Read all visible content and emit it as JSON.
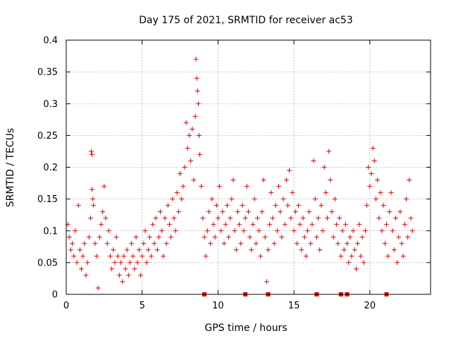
{
  "chart_data": {
    "type": "scatter",
    "title": "Day 175 of 2021, SRMTID for receiver ac53",
    "xlabel": "GPS time / hours",
    "ylabel": "SRMTID / TECUs",
    "xlim": [
      0,
      24
    ],
    "ylim": [
      0,
      0.4
    ],
    "xticks": [
      0,
      5,
      10,
      15,
      20
    ],
    "yticks": [
      0,
      0.05,
      0.1,
      0.15,
      0.2,
      0.25,
      0.3,
      0.35,
      0.4
    ],
    "xtick_labels": [
      "0",
      "5",
      "10",
      "15",
      "20"
    ],
    "ytick_labels": [
      "0",
      "0.05",
      "0.1",
      "0.15",
      "0.2",
      "0.25",
      "0.3",
      "0.35",
      "0.4"
    ],
    "grid": true,
    "marker": "+",
    "color": "#e00000",
    "zero_markers_x": [
      9.1,
      11.8,
      13.3,
      16.5,
      18.1,
      18.5,
      21.1
    ],
    "series": [
      {
        "name": "SRMTID",
        "points": [
          [
            0.1,
            0.11
          ],
          [
            0.2,
            0.09
          ],
          [
            0.3,
            0.07
          ],
          [
            0.4,
            0.08
          ],
          [
            0.5,
            0.06
          ],
          [
            0.6,
            0.1
          ],
          [
            0.7,
            0.05
          ],
          [
            0.8,
            0.14
          ],
          [
            0.9,
            0.07
          ],
          [
            1.0,
            0.04
          ],
          [
            1.1,
            0.06
          ],
          [
            1.2,
            0.08
          ],
          [
            1.3,
            0.03
          ],
          [
            1.4,
            0.05
          ],
          [
            1.5,
            0.09
          ],
          [
            1.6,
            0.12
          ],
          [
            1.65,
            0.225
          ],
          [
            1.7,
            0.22
          ],
          [
            1.7,
            0.165
          ],
          [
            1.75,
            0.15
          ],
          [
            1.8,
            0.14
          ],
          [
            1.9,
            0.08
          ],
          [
            2.0,
            0.06
          ],
          [
            2.1,
            0.01
          ],
          [
            2.2,
            0.09
          ],
          [
            2.3,
            0.11
          ],
          [
            2.4,
            0.13
          ],
          [
            2.5,
            0.17
          ],
          [
            2.6,
            0.12
          ],
          [
            2.7,
            0.08
          ],
          [
            2.8,
            0.1
          ],
          [
            2.9,
            0.06
          ],
          [
            3.0,
            0.04
          ],
          [
            3.1,
            0.07
          ],
          [
            3.2,
            0.05
          ],
          [
            3.3,
            0.09
          ],
          [
            3.4,
            0.06
          ],
          [
            3.5,
            0.03
          ],
          [
            3.6,
            0.05
          ],
          [
            3.7,
            0.02
          ],
          [
            3.8,
            0.06
          ],
          [
            3.9,
            0.04
          ],
          [
            4.0,
            0.07
          ],
          [
            4.1,
            0.03
          ],
          [
            4.2,
            0.05
          ],
          [
            4.3,
            0.08
          ],
          [
            4.4,
            0.06
          ],
          [
            4.5,
            0.04
          ],
          [
            4.6,
            0.09
          ],
          [
            4.7,
            0.05
          ],
          [
            4.8,
            0.07
          ],
          [
            4.9,
            0.03
          ],
          [
            5.0,
            0.06
          ],
          [
            5.1,
            0.08
          ],
          [
            5.2,
            0.1
          ],
          [
            5.3,
            0.05
          ],
          [
            5.4,
            0.07
          ],
          [
            5.5,
            0.09
          ],
          [
            5.6,
            0.06
          ],
          [
            5.7,
            0.11
          ],
          [
            5.8,
            0.08
          ],
          [
            5.9,
            0.12
          ],
          [
            6.0,
            0.07
          ],
          [
            6.1,
            0.09
          ],
          [
            6.2,
            0.13
          ],
          [
            6.3,
            0.1
          ],
          [
            6.4,
            0.06
          ],
          [
            6.5,
            0.12
          ],
          [
            6.6,
            0.08
          ],
          [
            6.7,
            0.14
          ],
          [
            6.8,
            0.11
          ],
          [
            6.9,
            0.09
          ],
          [
            7.0,
            0.15
          ],
          [
            7.1,
            0.12
          ],
          [
            7.2,
            0.1
          ],
          [
            7.3,
            0.16
          ],
          [
            7.4,
            0.13
          ],
          [
            7.5,
            0.19
          ],
          [
            7.6,
            0.15
          ],
          [
            7.7,
            0.17
          ],
          [
            7.8,
            0.2
          ],
          [
            7.9,
            0.27
          ],
          [
            8.0,
            0.23
          ],
          [
            8.1,
            0.25
          ],
          [
            8.2,
            0.21
          ],
          [
            8.3,
            0.26
          ],
          [
            8.4,
            0.18
          ],
          [
            8.5,
            0.28
          ],
          [
            8.55,
            0.37
          ],
          [
            8.6,
            0.34
          ],
          [
            8.65,
            0.32
          ],
          [
            8.7,
            0.3
          ],
          [
            8.75,
            0.25
          ],
          [
            8.8,
            0.22
          ],
          [
            8.9,
            0.17
          ],
          [
            9.0,
            0.12
          ],
          [
            9.1,
            0.09
          ],
          [
            9.2,
            0.06
          ],
          [
            9.3,
            0.1
          ],
          [
            9.4,
            0.13
          ],
          [
            9.5,
            0.08
          ],
          [
            9.6,
            0.15
          ],
          [
            9.7,
            0.11
          ],
          [
            9.8,
            0.09
          ],
          [
            9.9,
            0.14
          ],
          [
            10.0,
            0.12
          ],
          [
            10.1,
            0.17
          ],
          [
            10.2,
            0.1
          ],
          [
            10.3,
            0.13
          ],
          [
            10.4,
            0.08
          ],
          [
            10.5,
            0.11
          ],
          [
            10.6,
            0.14
          ],
          [
            10.7,
            0.09
          ],
          [
            10.8,
            0.12
          ],
          [
            10.9,
            0.15
          ],
          [
            11.0,
            0.18
          ],
          [
            11.1,
            0.1
          ],
          [
            11.2,
            0.07
          ],
          [
            11.3,
            0.13
          ],
          [
            11.4,
            0.11
          ],
          [
            11.5,
            0.08
          ],
          [
            11.6,
            0.14
          ],
          [
            11.7,
            0.1
          ],
          [
            11.8,
            0.12
          ],
          [
            11.9,
            0.17
          ],
          [
            12.0,
            0.13
          ],
          [
            12.1,
            0.09
          ],
          [
            12.2,
            0.07
          ],
          [
            12.3,
            0.11
          ],
          [
            12.4,
            0.15
          ],
          [
            12.5,
            0.08
          ],
          [
            12.6,
            0.12
          ],
          [
            12.7,
            0.1
          ],
          [
            12.8,
            0.06
          ],
          [
            12.9,
            0.13
          ],
          [
            13.0,
            0.18
          ],
          [
            13.1,
            0.09
          ],
          [
            13.2,
            0.02
          ],
          [
            13.3,
            0.07
          ],
          [
            13.4,
            0.11
          ],
          [
            13.5,
            0.16
          ],
          [
            13.6,
            0.12
          ],
          [
            13.7,
            0.08
          ],
          [
            13.8,
            0.14
          ],
          [
            13.9,
            0.1
          ],
          [
            14.0,
            0.17
          ],
          [
            14.1,
            0.13
          ],
          [
            14.2,
            0.09
          ],
          [
            14.3,
            0.15
          ],
          [
            14.4,
            0.11
          ],
          [
            14.5,
            0.18
          ],
          [
            14.6,
            0.14
          ],
          [
            14.7,
            0.195
          ],
          [
            14.8,
            0.12
          ],
          [
            14.9,
            0.16
          ],
          [
            15.0,
            0.1
          ],
          [
            15.1,
            0.13
          ],
          [
            15.2,
            0.08
          ],
          [
            15.3,
            0.14
          ],
          [
            15.4,
            0.11
          ],
          [
            15.5,
            0.07
          ],
          [
            15.6,
            0.12
          ],
          [
            15.7,
            0.09
          ],
          [
            15.8,
            0.06
          ],
          [
            15.9,
            0.1
          ],
          [
            16.0,
            0.13
          ],
          [
            16.1,
            0.08
          ],
          [
            16.2,
            0.11
          ],
          [
            16.3,
            0.21
          ],
          [
            16.4,
            0.15
          ],
          [
            16.5,
            0.09
          ],
          [
            16.6,
            0.12
          ],
          [
            16.7,
            0.07
          ],
          [
            16.8,
            0.14
          ],
          [
            16.9,
            0.1
          ],
          [
            17.0,
            0.2
          ],
          [
            17.1,
            0.16
          ],
          [
            17.2,
            0.12
          ],
          [
            17.3,
            0.225
          ],
          [
            17.4,
            0.18
          ],
          [
            17.5,
            0.13
          ],
          [
            17.6,
            0.09
          ],
          [
            17.7,
            0.15
          ],
          [
            17.8,
            0.11
          ],
          [
            17.9,
            0.08
          ],
          [
            18.0,
            0.12
          ],
          [
            18.1,
            0.06
          ],
          [
            18.2,
            0.1
          ],
          [
            18.3,
            0.07
          ],
          [
            18.4,
            0.11
          ],
          [
            18.5,
            0.08
          ],
          [
            18.6,
            0.05
          ],
          [
            18.7,
            0.09
          ],
          [
            18.8,
            0.06
          ],
          [
            18.9,
            0.1
          ],
          [
            19.0,
            0.07
          ],
          [
            19.1,
            0.04
          ],
          [
            19.2,
            0.08
          ],
          [
            19.3,
            0.11
          ],
          [
            19.4,
            0.06
          ],
          [
            19.5,
            0.09
          ],
          [
            19.6,
            0.05
          ],
          [
            19.7,
            0.1
          ],
          [
            19.8,
            0.14
          ],
          [
            19.9,
            0.2
          ],
          [
            20.0,
            0.17
          ],
          [
            20.1,
            0.19
          ],
          [
            20.2,
            0.23
          ],
          [
            20.3,
            0.21
          ],
          [
            20.4,
            0.15
          ],
          [
            20.5,
            0.18
          ],
          [
            20.6,
            0.12
          ],
          [
            20.7,
            0.16
          ],
          [
            20.8,
            0.1
          ],
          [
            20.9,
            0.14
          ],
          [
            21.0,
            0.08
          ],
          [
            21.1,
            0.11
          ],
          [
            21.2,
            0.06
          ],
          [
            21.3,
            0.13
          ],
          [
            21.4,
            0.16
          ],
          [
            21.5,
            0.1
          ],
          [
            21.6,
            0.07
          ],
          [
            21.7,
            0.12
          ],
          [
            21.8,
            0.05
          ],
          [
            21.9,
            0.09
          ],
          [
            22.0,
            0.13
          ],
          [
            22.1,
            0.08
          ],
          [
            22.2,
            0.06
          ],
          [
            22.3,
            0.11
          ],
          [
            22.4,
            0.15
          ],
          [
            22.5,
            0.09
          ],
          [
            22.6,
            0.18
          ],
          [
            22.7,
            0.12
          ],
          [
            22.8,
            0.1
          ]
        ]
      }
    ]
  }
}
